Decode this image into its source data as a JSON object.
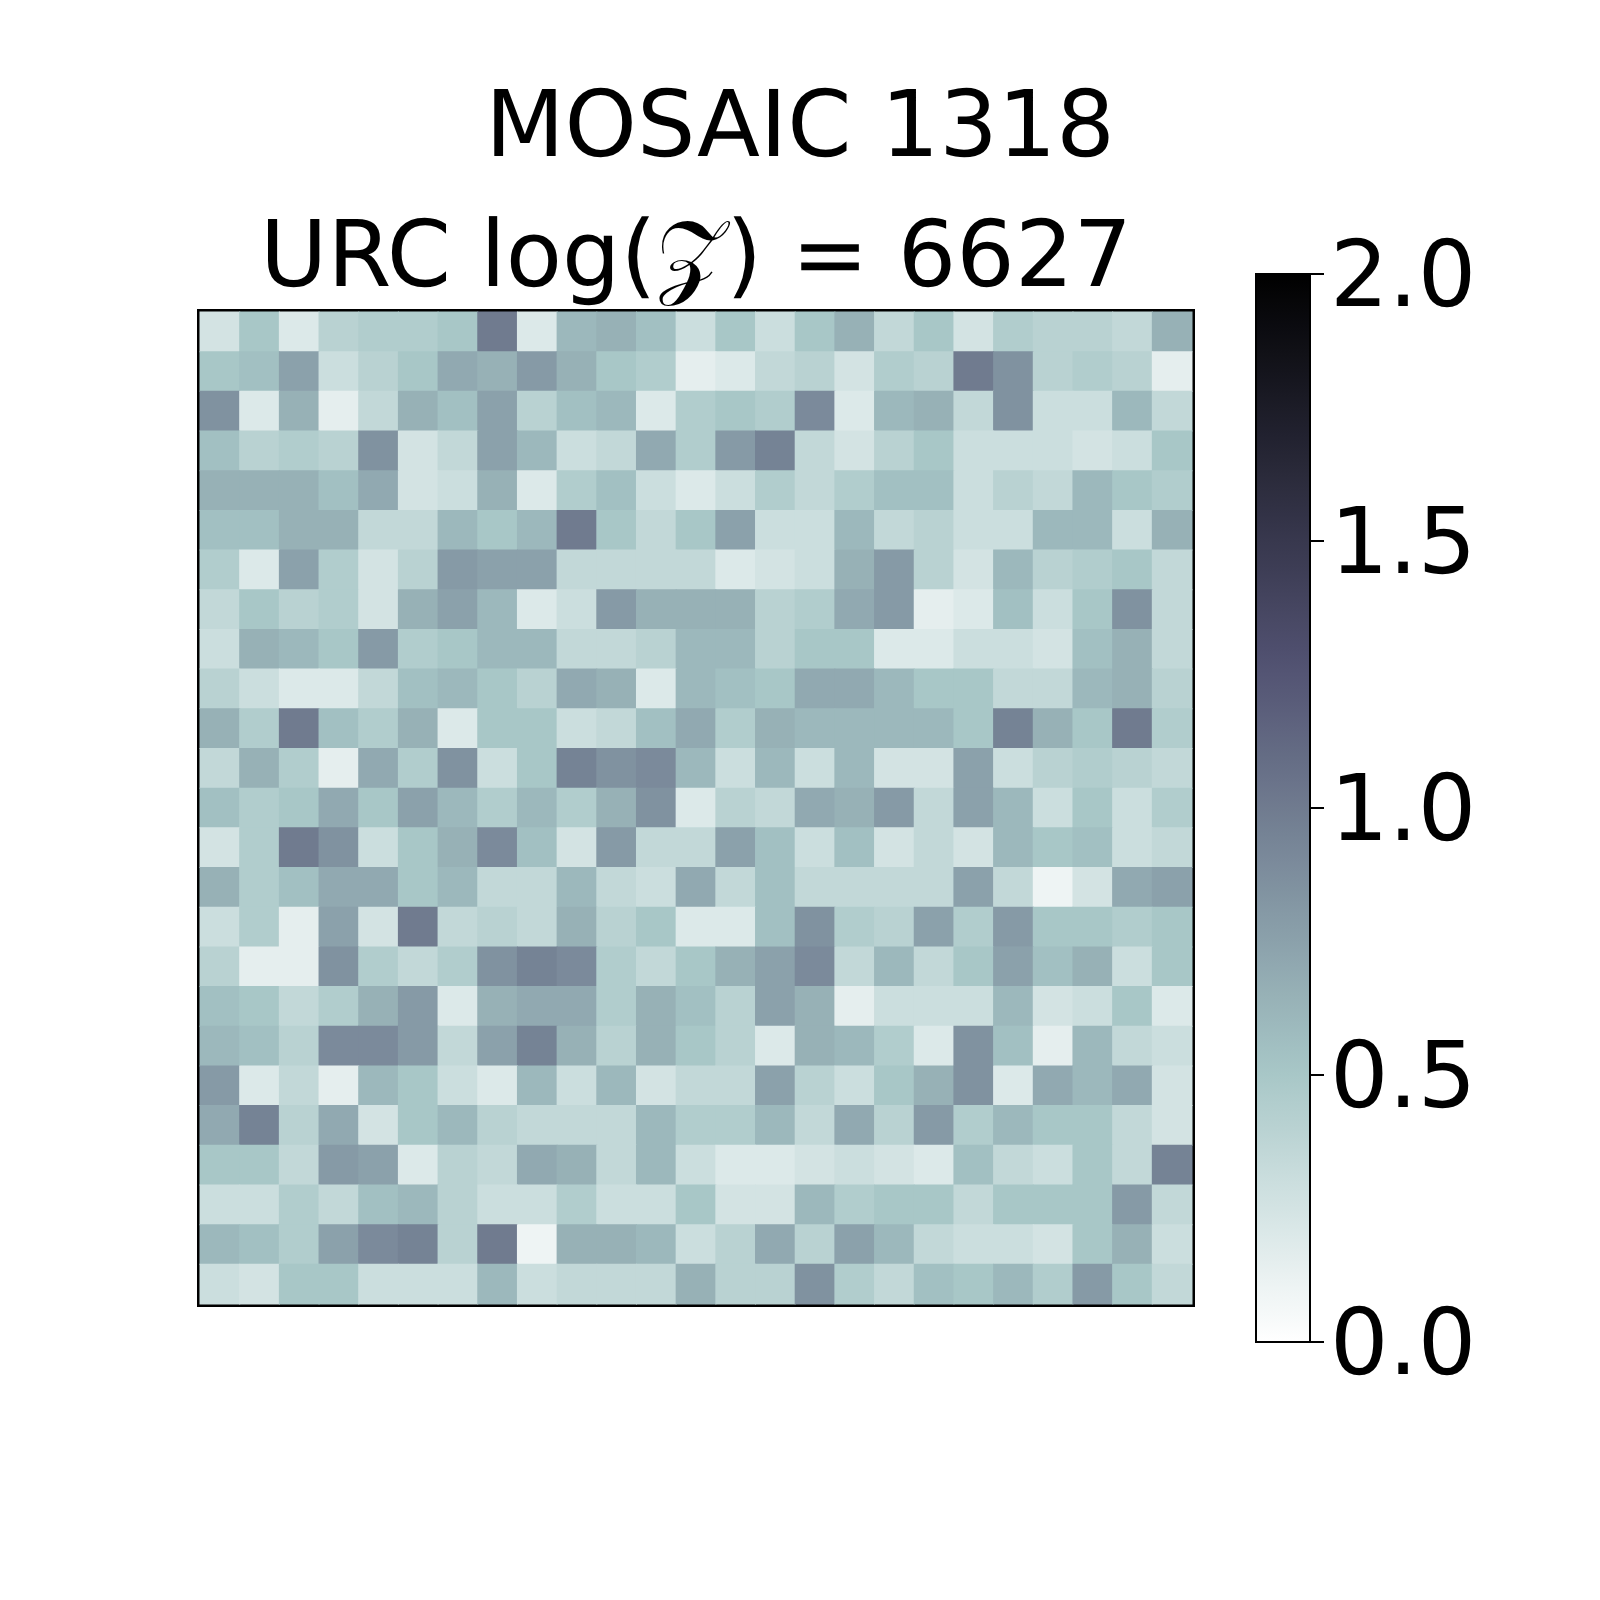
{
  "chart_data": {
    "type": "heatmap",
    "title": "MOSAIC 1318",
    "subtitle": "URC log(𝒵) = 6627",
    "categories": [
      null,
      null,
      null,
      null,
      null,
      null,
      null,
      null,
      null,
      null,
      null,
      null,
      null,
      null,
      null,
      null,
      null,
      null,
      null,
      null,
      null,
      null,
      null,
      null,
      null
    ],
    "y_categories": [
      null,
      null,
      null,
      null,
      null,
      null,
      null,
      null,
      null,
      null,
      null,
      null,
      null,
      null,
      null,
      null,
      null,
      null,
      null,
      null,
      null,
      null,
      null,
      null,
      null
    ],
    "cells": [
      [
        0.25,
        0.5,
        0.2,
        0.4,
        0.45,
        0.45,
        0.5,
        1.0,
        0.2,
        0.6,
        0.65,
        0.55,
        0.3,
        0.5,
        0.3,
        0.5,
        0.65,
        0.35,
        0.5,
        0.25,
        0.45,
        0.4,
        0.4,
        0.35,
        0.65
      ],
      [
        0.5,
        0.55,
        0.75,
        0.3,
        0.4,
        0.5,
        0.7,
        0.65,
        0.8,
        0.65,
        0.5,
        0.45,
        0.15,
        0.2,
        0.35,
        0.4,
        0.25,
        0.45,
        0.4,
        1.0,
        0.85,
        0.4,
        0.45,
        0.4,
        0.15
      ],
      [
        0.85,
        0.2,
        0.65,
        0.15,
        0.35,
        0.65,
        0.55,
        0.75,
        0.4,
        0.55,
        0.6,
        0.2,
        0.45,
        0.5,
        0.45,
        0.9,
        0.2,
        0.6,
        0.65,
        0.35,
        0.85,
        0.3,
        0.3,
        0.6,
        0.35
      ],
      [
        0.55,
        0.4,
        0.45,
        0.4,
        0.85,
        0.25,
        0.35,
        0.75,
        0.6,
        0.3,
        0.35,
        0.7,
        0.45,
        0.8,
        0.95,
        0.35,
        0.25,
        0.4,
        0.5,
        0.3,
        0.3,
        0.3,
        0.25,
        0.3,
        0.5
      ],
      [
        0.65,
        0.65,
        0.65,
        0.55,
        0.7,
        0.25,
        0.3,
        0.65,
        0.2,
        0.45,
        0.55,
        0.3,
        0.2,
        0.3,
        0.45,
        0.35,
        0.45,
        0.55,
        0.55,
        0.3,
        0.4,
        0.35,
        0.6,
        0.5,
        0.45
      ],
      [
        0.55,
        0.55,
        0.65,
        0.65,
        0.35,
        0.35,
        0.6,
        0.5,
        0.6,
        1.0,
        0.5,
        0.35,
        0.5,
        0.75,
        0.3,
        0.3,
        0.6,
        0.35,
        0.4,
        0.3,
        0.3,
        0.6,
        0.6,
        0.3,
        0.65
      ],
      [
        0.45,
        0.2,
        0.75,
        0.45,
        0.25,
        0.4,
        0.8,
        0.75,
        0.75,
        0.35,
        0.35,
        0.35,
        0.35,
        0.2,
        0.25,
        0.3,
        0.65,
        0.8,
        0.4,
        0.25,
        0.6,
        0.4,
        0.45,
        0.5,
        0.35
      ],
      [
        0.35,
        0.5,
        0.4,
        0.45,
        0.25,
        0.65,
        0.75,
        0.6,
        0.2,
        0.3,
        0.8,
        0.65,
        0.65,
        0.65,
        0.4,
        0.45,
        0.7,
        0.8,
        0.15,
        0.2,
        0.55,
        0.3,
        0.5,
        0.85,
        0.35
      ],
      [
        0.3,
        0.65,
        0.6,
        0.5,
        0.8,
        0.45,
        0.5,
        0.6,
        0.6,
        0.35,
        0.35,
        0.4,
        0.6,
        0.6,
        0.4,
        0.5,
        0.5,
        0.2,
        0.2,
        0.3,
        0.3,
        0.25,
        0.55,
        0.65,
        0.35
      ],
      [
        0.4,
        0.3,
        0.2,
        0.2,
        0.35,
        0.55,
        0.6,
        0.5,
        0.4,
        0.7,
        0.65,
        0.2,
        0.6,
        0.55,
        0.5,
        0.7,
        0.7,
        0.6,
        0.5,
        0.5,
        0.35,
        0.35,
        0.6,
        0.65,
        0.4
      ],
      [
        0.65,
        0.45,
        1.0,
        0.55,
        0.45,
        0.65,
        0.2,
        0.5,
        0.5,
        0.3,
        0.35,
        0.55,
        0.7,
        0.45,
        0.65,
        0.6,
        0.6,
        0.6,
        0.6,
        0.5,
        0.95,
        0.65,
        0.5,
        1.0,
        0.45
      ],
      [
        0.35,
        0.65,
        0.45,
        0.15,
        0.7,
        0.45,
        0.85,
        0.3,
        0.5,
        0.95,
        0.85,
        0.9,
        0.6,
        0.3,
        0.6,
        0.3,
        0.6,
        0.25,
        0.25,
        0.75,
        0.3,
        0.4,
        0.45,
        0.4,
        0.35
      ],
      [
        0.55,
        0.45,
        0.5,
        0.7,
        0.5,
        0.75,
        0.6,
        0.45,
        0.6,
        0.45,
        0.65,
        0.85,
        0.2,
        0.4,
        0.35,
        0.7,
        0.65,
        0.8,
        0.35,
        0.75,
        0.6,
        0.3,
        0.5,
        0.3,
        0.45
      ],
      [
        0.25,
        0.45,
        1.0,
        0.85,
        0.3,
        0.5,
        0.65,
        0.9,
        0.55,
        0.25,
        0.8,
        0.35,
        0.35,
        0.75,
        0.55,
        0.3,
        0.55,
        0.25,
        0.35,
        0.25,
        0.6,
        0.5,
        0.55,
        0.3,
        0.35
      ],
      [
        0.65,
        0.45,
        0.55,
        0.7,
        0.7,
        0.5,
        0.6,
        0.35,
        0.35,
        0.6,
        0.35,
        0.3,
        0.7,
        0.35,
        0.55,
        0.35,
        0.35,
        0.35,
        0.35,
        0.75,
        0.35,
        0.1,
        0.25,
        0.7,
        0.75
      ],
      [
        0.3,
        0.45,
        0.15,
        0.75,
        0.25,
        1.0,
        0.35,
        0.4,
        0.35,
        0.65,
        0.4,
        0.5,
        0.2,
        0.2,
        0.55,
        0.85,
        0.45,
        0.4,
        0.75,
        0.45,
        0.8,
        0.5,
        0.5,
        0.45,
        0.5
      ],
      [
        0.4,
        0.15,
        0.15,
        0.85,
        0.45,
        0.35,
        0.45,
        0.85,
        0.95,
        0.9,
        0.45,
        0.35,
        0.5,
        0.65,
        0.75,
        0.9,
        0.35,
        0.6,
        0.35,
        0.5,
        0.75,
        0.55,
        0.65,
        0.3,
        0.5
      ],
      [
        0.55,
        0.5,
        0.35,
        0.45,
        0.65,
        0.8,
        0.2,
        0.65,
        0.7,
        0.7,
        0.45,
        0.65,
        0.55,
        0.4,
        0.75,
        0.65,
        0.15,
        0.3,
        0.3,
        0.3,
        0.6,
        0.25,
        0.3,
        0.5,
        0.2
      ],
      [
        0.6,
        0.55,
        0.4,
        0.9,
        0.9,
        0.8,
        0.35,
        0.75,
        0.95,
        0.65,
        0.4,
        0.65,
        0.5,
        0.4,
        0.2,
        0.65,
        0.6,
        0.45,
        0.2,
        0.85,
        0.55,
        0.15,
        0.6,
        0.35,
        0.3
      ],
      [
        0.8,
        0.2,
        0.35,
        0.15,
        0.6,
        0.5,
        0.3,
        0.2,
        0.6,
        0.3,
        0.6,
        0.25,
        0.35,
        0.35,
        0.75,
        0.4,
        0.3,
        0.5,
        0.65,
        0.85,
        0.2,
        0.7,
        0.6,
        0.7,
        0.25
      ],
      [
        0.7,
        0.95,
        0.4,
        0.7,
        0.25,
        0.5,
        0.6,
        0.4,
        0.35,
        0.35,
        0.35,
        0.6,
        0.45,
        0.45,
        0.6,
        0.35,
        0.7,
        0.4,
        0.8,
        0.45,
        0.6,
        0.5,
        0.5,
        0.35,
        0.25
      ],
      [
        0.5,
        0.5,
        0.35,
        0.8,
        0.75,
        0.2,
        0.4,
        0.35,
        0.7,
        0.65,
        0.35,
        0.6,
        0.3,
        0.2,
        0.2,
        0.25,
        0.3,
        0.25,
        0.2,
        0.55,
        0.35,
        0.3,
        0.5,
        0.35,
        0.95
      ],
      [
        0.3,
        0.3,
        0.45,
        0.35,
        0.55,
        0.6,
        0.4,
        0.3,
        0.3,
        0.45,
        0.3,
        0.3,
        0.5,
        0.25,
        0.25,
        0.6,
        0.45,
        0.5,
        0.5,
        0.35,
        0.5,
        0.5,
        0.5,
        0.8,
        0.35
      ],
      [
        0.6,
        0.55,
        0.45,
        0.75,
        0.9,
        0.95,
        0.4,
        1.0,
        0.1,
        0.65,
        0.65,
        0.6,
        0.3,
        0.4,
        0.7,
        0.4,
        0.75,
        0.6,
        0.35,
        0.3,
        0.3,
        0.25,
        0.5,
        0.65,
        0.3
      ],
      [
        0.3,
        0.25,
        0.5,
        0.5,
        0.3,
        0.3,
        0.3,
        0.6,
        0.3,
        0.35,
        0.35,
        0.35,
        0.65,
        0.4,
        0.4,
        0.85,
        0.45,
        0.35,
        0.55,
        0.5,
        0.6,
        0.45,
        0.8,
        0.5,
        0.35
      ]
    ],
    "clim": [
      0,
      2
    ],
    "cticks": [
      {
        "value": 0,
        "label": "0.0"
      },
      0.5,
      {
        "value": 1,
        "label": "1.0"
      },
      1.5,
      {
        "value": 2,
        "label": "2.0"
      }
    ]
  }
}
